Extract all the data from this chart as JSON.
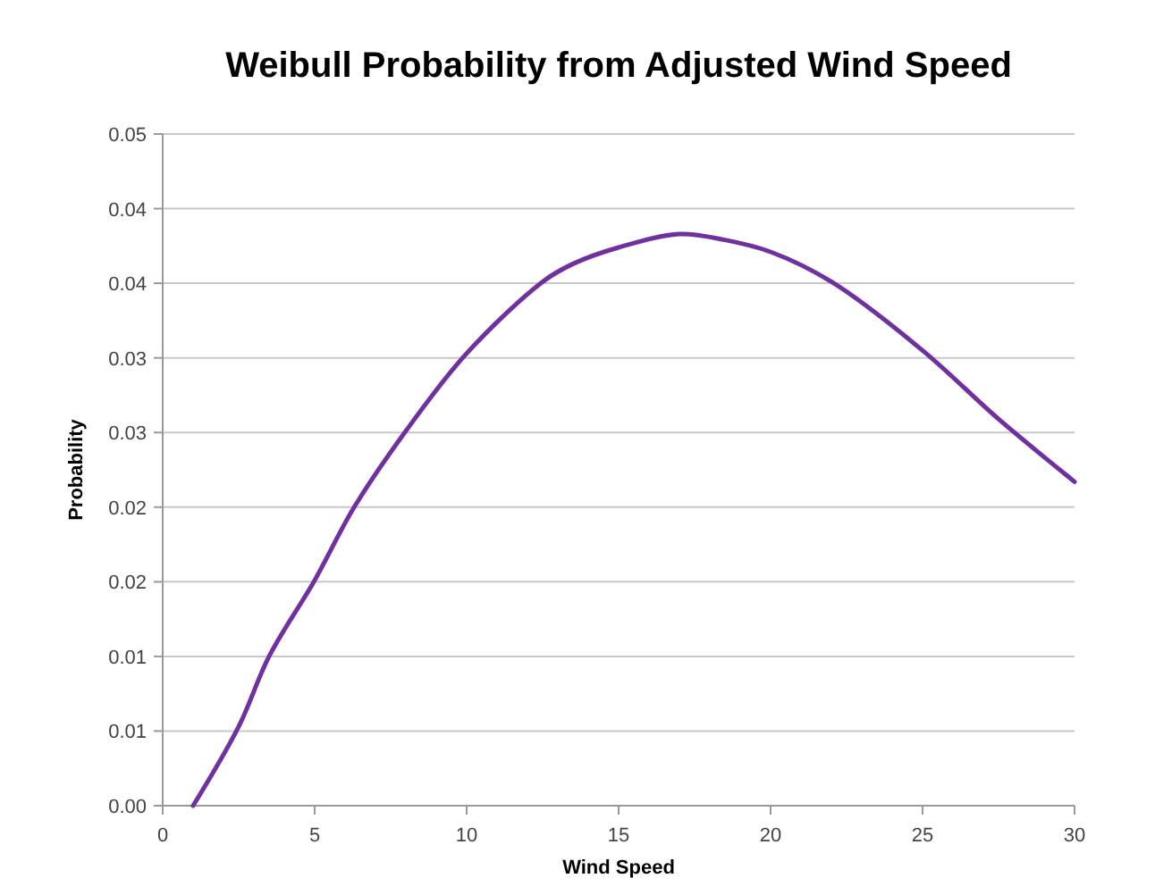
{
  "chart_data": {
    "type": "line",
    "title": "Weibull Probability from Adjusted Wind Speed",
    "xlabel": "Wind Speed",
    "ylabel": "Probability",
    "xlim": [
      0,
      30
    ],
    "xticks": [
      0,
      5,
      10,
      15,
      20,
      25,
      30
    ],
    "ylim": [
      0,
      0.045
    ],
    "yticks": [
      {
        "value": 0,
        "label": "0.00"
      },
      {
        "value": 0.005,
        "label": "0.01"
      },
      {
        "value": 0.01,
        "label": "0.01"
      },
      {
        "value": 0.015,
        "label": "0.02"
      },
      {
        "value": 0.02,
        "label": "0.02"
      },
      {
        "value": 0.025,
        "label": "0.03"
      },
      {
        "value": 0.03,
        "label": "0.03"
      },
      {
        "value": 0.035,
        "label": "0.04"
      },
      {
        "value": 0.04,
        "label": "0.04"
      },
      {
        "value": 0.045,
        "label": "0.05"
      }
    ],
    "grid": "y",
    "marker": "none",
    "line_style": "solid",
    "series": [
      {
        "color": "#7030a0",
        "x": [
          1,
          2.5,
          3.5,
          5,
          6.3,
          8,
          10,
          12.5,
          13.5,
          15,
          17,
          18.5,
          20,
          22,
          25,
          27.5,
          30
        ],
        "values": [
          0,
          0.0053,
          0.01,
          0.0151,
          0.02,
          0.0251,
          0.0303,
          0.0351,
          0.0363,
          0.0374,
          0.0383,
          0.0379,
          0.0371,
          0.0351,
          0.0305,
          0.0259,
          0.0217
        ]
      }
    ]
  }
}
